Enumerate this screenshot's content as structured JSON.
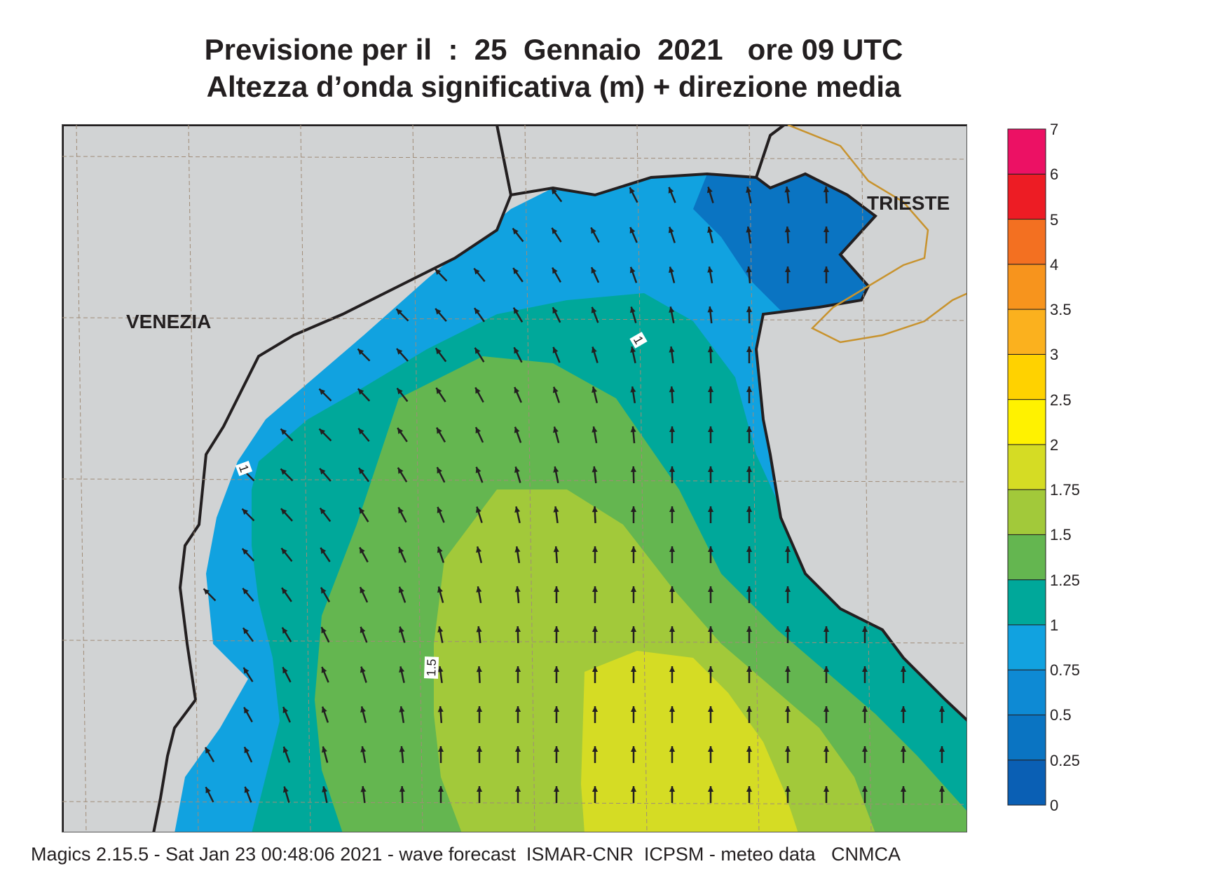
{
  "title_line1": "Previsione per il  :  25  Gennaio  2021   ore 09 UTC",
  "title_line2": "Altezza d’onda significativa (m) + direzione media",
  "cities": {
    "venezia": "VENEZIA",
    "trieste": "TRIESTE"
  },
  "contour_labels": [
    "1",
    "1",
    "1.5"
  ],
  "legend": {
    "labels": [
      "0",
      "0.25",
      "0.5",
      "0.75",
      "1",
      "1.25",
      "1.5",
      "1.75",
      "2",
      "2.5",
      "3",
      "3.5",
      "4",
      "5",
      "6",
      "7"
    ],
    "colors": [
      "#0a5fb4",
      "#0a74c2",
      "#0e8ad4",
      "#11a2e0",
      "#00a89a",
      "#64b650",
      "#a2c93a",
      "#d5dc24",
      "#fff200",
      "#ffd200",
      "#fbb11e",
      "#f7941d",
      "#f37021",
      "#ed1c24",
      "#ec1164"
    ]
  },
  "colors": {
    "land": "#d1d3d4",
    "coast": "#231f20",
    "border": "#c8932e",
    "grid": "#a08c78",
    "arrow": "#231f20"
  },
  "footer": "Magics 2.15.5 - Sat Jan 23 00:48:06 2021 - wave forecast  ISMAR-CNR  ICPSM - meteo data   CNMCA"
}
